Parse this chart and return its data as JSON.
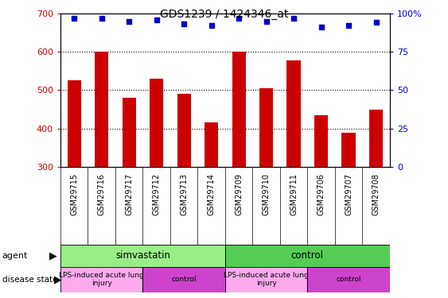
{
  "title": "GDS1239 / 1424346_at",
  "samples": [
    "GSM29715",
    "GSM29716",
    "GSM29717",
    "GSM29712",
    "GSM29713",
    "GSM29714",
    "GSM29709",
    "GSM29710",
    "GSM29711",
    "GSM29706",
    "GSM29707",
    "GSM29708"
  ],
  "counts": [
    525,
    600,
    480,
    530,
    490,
    415,
    600,
    505,
    578,
    435,
    390,
    450
  ],
  "percentile": [
    97,
    97,
    95,
    96,
    93,
    92,
    97,
    95,
    97,
    91,
    92,
    94
  ],
  "ylim_left": [
    300,
    700
  ],
  "ylim_right": [
    0,
    100
  ],
  "yticks_left": [
    300,
    400,
    500,
    600,
    700
  ],
  "yticks_right": [
    0,
    25,
    50,
    75,
    100
  ],
  "bar_color": "#cc0000",
  "dot_color": "#0000cc",
  "bar_width": 0.5,
  "agent_groups": [
    {
      "label": "simvastatin",
      "start": 0,
      "end": 6,
      "color": "#99ee88"
    },
    {
      "label": "control",
      "start": 6,
      "end": 12,
      "color": "#55cc55"
    }
  ],
  "disease_groups": [
    {
      "label": "LPS-induced acute lung\ninjury",
      "start": 0,
      "end": 3,
      "color": "#ffaaee"
    },
    {
      "label": "control",
      "start": 3,
      "end": 6,
      "color": "#cc44cc"
    },
    {
      "label": "LPS-induced acute lung\ninjury",
      "start": 6,
      "end": 9,
      "color": "#ffaaee"
    },
    {
      "label": "control",
      "start": 9,
      "end": 12,
      "color": "#cc44cc"
    }
  ],
  "legend_count_color": "#cc0000",
  "legend_dot_color": "#0000cc",
  "left_label_color": "#cc0000",
  "right_label_color": "#0000cc",
  "xlabel_area_color": "#c8c8c8",
  "fig_width": 5.63,
  "fig_height": 3.75,
  "dpi": 100
}
